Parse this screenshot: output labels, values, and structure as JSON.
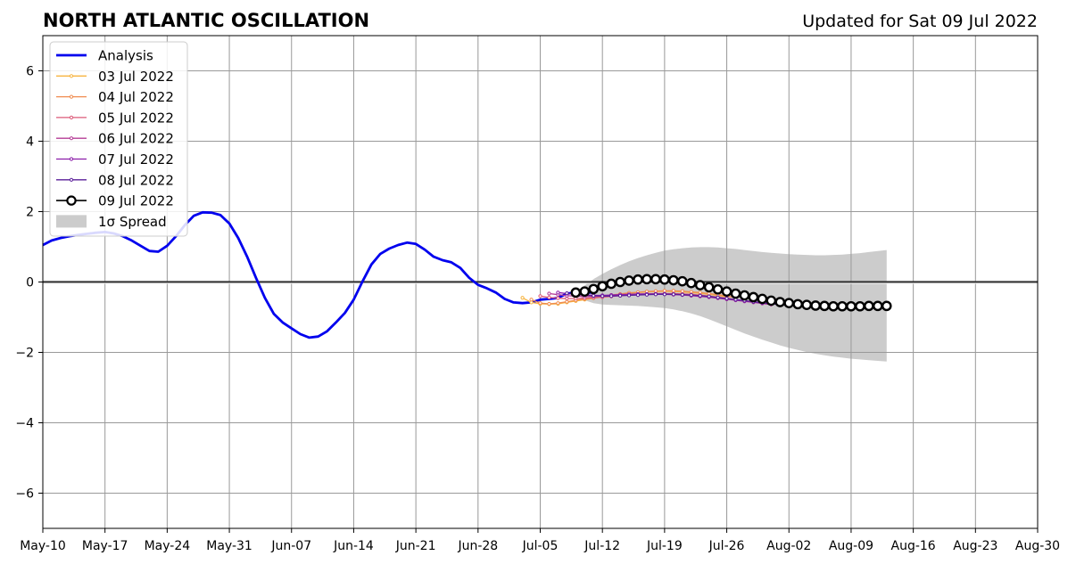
{
  "header": {
    "title": "NORTH ATLANTIC OSCILLATION",
    "updated": "Updated for Sat 09 Jul 2022"
  },
  "chart_data": {
    "type": "line",
    "title": "NORTH ATLANTIC OSCILLATION",
    "subtitle": "Updated for Sat 09 Jul 2022",
    "xlabel": "",
    "ylabel": "",
    "xlim": [
      "2022-05-10",
      "2022-08-30"
    ],
    "ylim": [
      -7,
      7
    ],
    "x_ticks": [
      "May-10",
      "May-17",
      "May-24",
      "May-31",
      "Jun-07",
      "Jun-14",
      "Jun-21",
      "Jun-28",
      "Jul-05",
      "Jul-12",
      "Jul-19",
      "Jul-26",
      "Aug-02",
      "Aug-09",
      "Aug-16",
      "Aug-23",
      "Aug-30"
    ],
    "x_tick_dates": [
      "2022-05-10",
      "2022-05-17",
      "2022-05-24",
      "2022-05-31",
      "2022-06-07",
      "2022-06-14",
      "2022-06-21",
      "2022-06-28",
      "2022-07-05",
      "2022-07-12",
      "2022-07-19",
      "2022-07-26",
      "2022-08-02",
      "2022-08-09",
      "2022-08-16",
      "2022-08-23",
      "2022-08-30"
    ],
    "y_ticks": [
      6,
      4,
      2,
      0,
      -2,
      -4,
      -6
    ],
    "y_tick_labels": [
      "6",
      "4",
      "2",
      "0",
      "−2",
      "−4",
      "−6"
    ],
    "grid": true,
    "legend_position": "top-left",
    "colors": {
      "analysis": "#0000ee",
      "spread": "#cccccc",
      "grid": "#999999",
      "zero_line": "#333333"
    },
    "analysis": {
      "name": "Analysis",
      "color": "#0000ee",
      "start_date": "2022-05-10",
      "values": [
        1.05,
        1.18,
        1.25,
        1.3,
        1.34,
        1.37,
        1.4,
        1.42,
        1.38,
        1.3,
        1.18,
        1.03,
        0.88,
        0.86,
        1.03,
        1.3,
        1.62,
        1.88,
        1.98,
        1.97,
        1.9,
        1.66,
        1.25,
        0.72,
        0.12,
        -0.45,
        -0.9,
        -1.15,
        -1.32,
        -1.48,
        -1.58,
        -1.55,
        -1.4,
        -1.15,
        -0.88,
        -0.5,
        0.02,
        0.5,
        0.8,
        0.95,
        1.05,
        1.12,
        1.08,
        0.92,
        0.72,
        0.62,
        0.56,
        0.4,
        0.12,
        -0.08,
        -0.18,
        -0.3,
        -0.48,
        -0.58,
        -0.6,
        -0.58,
        -0.5,
        -0.48,
        -0.45,
        -0.33,
        -0.3,
        -0.3,
        -0.3
      ]
    },
    "forecasts": [
      {
        "name": "03 Jul 2022",
        "color": "#f7b440",
        "start_date": "2022-07-03",
        "values": [
          -0.45,
          -0.58,
          -0.62,
          -0.63,
          -0.62,
          -0.58,
          -0.54,
          -0.5,
          -0.46,
          -0.42,
          -0.38,
          -0.35,
          -0.32,
          -0.3,
          -0.28,
          -0.27,
          -0.26,
          -0.27,
          -0.28,
          -0.3,
          -0.32,
          -0.35,
          -0.38,
          -0.42
        ]
      },
      {
        "name": "04 Jul 2022",
        "color": "#f08c50",
        "start_date": "2022-07-04",
        "values": [
          -0.5,
          -0.6,
          -0.62,
          -0.6,
          -0.56,
          -0.52,
          -0.48,
          -0.44,
          -0.4,
          -0.37,
          -0.34,
          -0.31,
          -0.29,
          -0.27,
          -0.26,
          -0.25,
          -0.25,
          -0.26,
          -0.28,
          -0.3,
          -0.33,
          -0.36,
          -0.4,
          -0.44
        ]
      },
      {
        "name": "05 Jul 2022",
        "color": "#dc5a78",
        "start_date": "2022-07-05",
        "values": [
          -0.4,
          -0.44,
          -0.46,
          -0.47,
          -0.47,
          -0.46,
          -0.45,
          -0.43,
          -0.41,
          -0.39,
          -0.37,
          -0.35,
          -0.34,
          -0.33,
          -0.33,
          -0.33,
          -0.34,
          -0.35,
          -0.37,
          -0.4,
          -0.43,
          -0.46,
          -0.5,
          -0.53,
          -0.56
        ]
      },
      {
        "name": "06 Jul 2022",
        "color": "#b43c96",
        "start_date": "2022-07-06",
        "values": [
          -0.33,
          -0.36,
          -0.39,
          -0.4,
          -0.41,
          -0.41,
          -0.4,
          -0.39,
          -0.38,
          -0.37,
          -0.36,
          -0.35,
          -0.35,
          -0.35,
          -0.36,
          -0.37,
          -0.39,
          -0.41,
          -0.43,
          -0.46,
          -0.49,
          -0.52,
          -0.55,
          -0.58,
          -0.61,
          -0.64
        ]
      },
      {
        "name": "07 Jul 2022",
        "color": "#8c1eaa",
        "start_date": "2022-07-07",
        "values": [
          -0.3,
          -0.33,
          -0.35,
          -0.37,
          -0.38,
          -0.38,
          -0.37,
          -0.36,
          -0.35,
          -0.34,
          -0.34,
          -0.34,
          -0.34,
          -0.35,
          -0.36,
          -0.38,
          -0.4,
          -0.42,
          -0.45,
          -0.48,
          -0.51,
          -0.54,
          -0.57,
          -0.6,
          -0.62,
          -0.64
        ]
      },
      {
        "name": "08 Jul 2022",
        "color": "#5a1e9a",
        "start_date": "2022-07-08",
        "values": [
          -0.32,
          -0.35,
          -0.37,
          -0.39,
          -0.4,
          -0.4,
          -0.39,
          -0.38,
          -0.37,
          -0.36,
          -0.35,
          -0.35,
          -0.35,
          -0.36,
          -0.37,
          -0.39,
          -0.41,
          -0.44,
          -0.47,
          -0.5,
          -0.53,
          -0.56,
          -0.59,
          -0.62,
          -0.64,
          -0.66
        ]
      },
      {
        "name": "09 Jul 2022",
        "color": "#000000",
        "start_date": "2022-07-09",
        "values": [
          -0.3,
          -0.27,
          -0.2,
          -0.12,
          -0.05,
          0.0,
          0.04,
          0.07,
          0.08,
          0.08,
          0.07,
          0.05,
          0.02,
          -0.03,
          -0.09,
          -0.15,
          -0.21,
          -0.27,
          -0.33,
          -0.38,
          -0.43,
          -0.48,
          -0.53,
          -0.57,
          -0.6,
          -0.63,
          -0.65,
          -0.67,
          -0.68,
          -0.69,
          -0.69,
          -0.69,
          -0.69,
          -0.68,
          -0.68,
          -0.68
        ]
      }
    ],
    "spread": {
      "name": "1σ Spread",
      "color": "#cccccc",
      "start_date": "2022-07-09",
      "upper": [
        -0.3,
        -0.1,
        0.08,
        0.23,
        0.36,
        0.48,
        0.59,
        0.68,
        0.76,
        0.83,
        0.89,
        0.93,
        0.96,
        0.98,
        0.99,
        0.99,
        0.98,
        0.96,
        0.94,
        0.91,
        0.88,
        0.85,
        0.83,
        0.81,
        0.79,
        0.78,
        0.77,
        0.76,
        0.76,
        0.77,
        0.78,
        0.8,
        0.82,
        0.85,
        0.88,
        0.91
      ],
      "lower": [
        -0.3,
        -0.52,
        -0.6,
        -0.64,
        -0.65,
        -0.66,
        -0.67,
        -0.68,
        -0.7,
        -0.72,
        -0.74,
        -0.78,
        -0.83,
        -0.89,
        -0.97,
        -1.06,
        -1.16,
        -1.26,
        -1.36,
        -1.46,
        -1.55,
        -1.64,
        -1.72,
        -1.8,
        -1.87,
        -1.93,
        -1.99,
        -2.04,
        -2.08,
        -2.12,
        -2.15,
        -2.18,
        -2.2,
        -2.22,
        -2.24,
        -2.26
      ]
    }
  }
}
